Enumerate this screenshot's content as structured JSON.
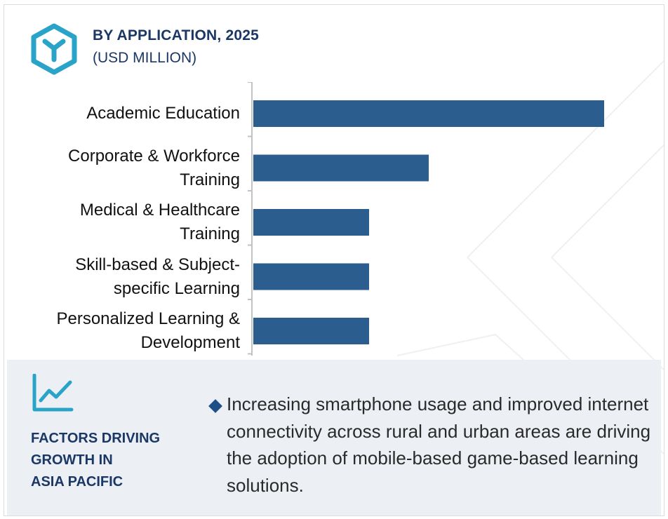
{
  "header": {
    "title": "BY APPLICATION, 2025",
    "subtitle": "(USD MILLION)",
    "icon": "cube-logo-icon"
  },
  "colors": {
    "bar": "#2c5d8f",
    "title": "#1b3766",
    "accent_teal": "#2aa3c9",
    "panel_bg": "#ecf0f5"
  },
  "chart_data": {
    "type": "bar",
    "orientation": "horizontal",
    "title": "BY APPLICATION, 2025",
    "subtitle": "(USD MILLION)",
    "categories": [
      "Academic Education",
      "Corporate & Workforce Training",
      "Medical & Healthcare Training",
      "Skill-based & Subject-specific Learning",
      "Personalized Learning & Development"
    ],
    "category_lines": [
      [
        "Academic Education"
      ],
      [
        "Corporate & Workforce",
        "Training"
      ],
      [
        "Medical & Healthcare",
        "Training"
      ],
      [
        "Skill-based & Subject-",
        "specific Learning"
      ],
      [
        "Personalized Learning &",
        "Development"
      ]
    ],
    "values": [
      100,
      50,
      33,
      33,
      33
    ],
    "value_note": "relative bar lengths (no axis values printed)",
    "xlim": [
      0,
      100
    ],
    "grid": false,
    "legend": "none"
  },
  "factors": {
    "icon": "trend-line-icon",
    "title_lines": [
      "FACTORS DRIVING",
      "GROWTH IN",
      "ASIA PACIFIC"
    ],
    "bullet_icon": "diamond-bullet-icon",
    "bullet_text": "Increasing smartphone usage and improved internet connectivity across rural and urban areas are driving the adoption of mobile-based game-based learning solutions."
  }
}
